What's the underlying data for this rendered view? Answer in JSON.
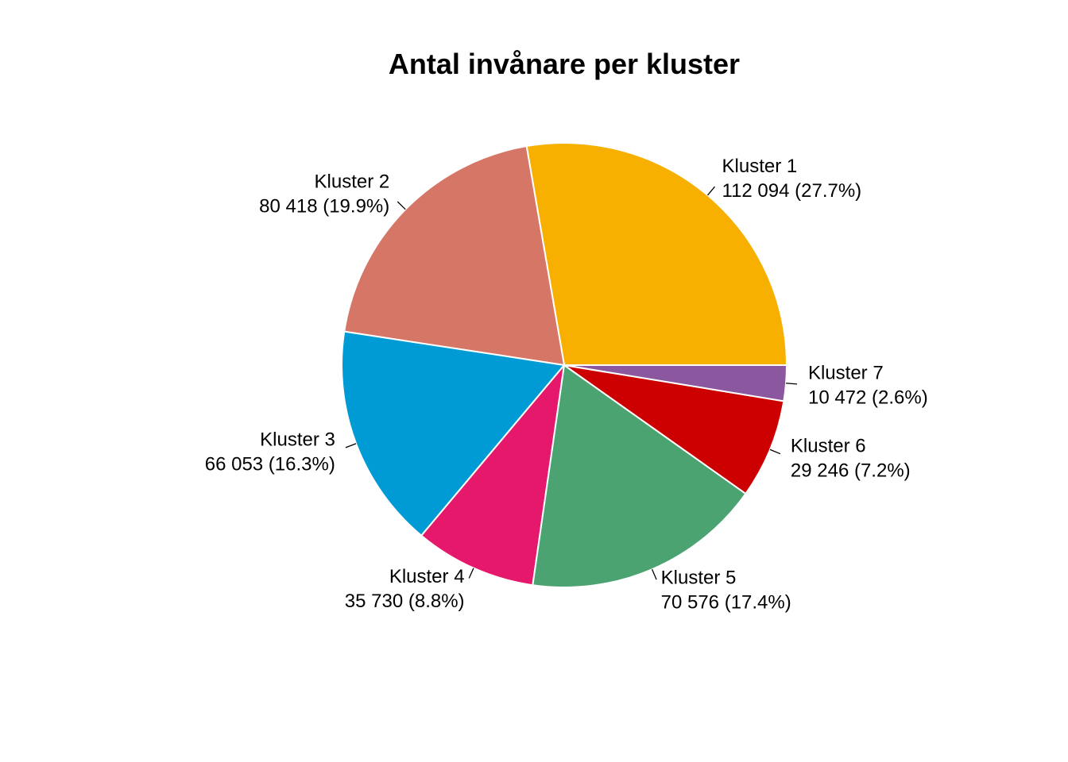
{
  "chart_data": {
    "type": "pie",
    "title": "Antal invånare per kluster",
    "slices": [
      {
        "name": "Kluster 1",
        "value": 112094,
        "value_label": "112 094",
        "percent_label": "27.7%",
        "color": "#F7B000"
      },
      {
        "name": "Kluster 2",
        "value": 80418,
        "value_label": "80 418",
        "percent_label": "19.9%",
        "color": "#D57667"
      },
      {
        "name": "Kluster 3",
        "value": 66053,
        "value_label": "66 053",
        "percent_label": "16.3%",
        "color": "#009BD5"
      },
      {
        "name": "Kluster 4",
        "value": 35730,
        "value_label": "35 730",
        "percent_label": "8.8%",
        "color": "#E6186B"
      },
      {
        "name": "Kluster 5",
        "value": 70576,
        "value_label": "70 576",
        "percent_label": "17.4%",
        "color": "#4BA371"
      },
      {
        "name": "Kluster 6",
        "value": 29246,
        "value_label": "29 246",
        "percent_label": "7.2%",
        "color": "#CC0000"
      },
      {
        "name": "Kluster 7",
        "value": 10472,
        "value_label": "10 472",
        "percent_label": "2.6%",
        "color": "#8B579E"
      }
    ],
    "direction": "counterclockwise",
    "start": "east",
    "legend": "none"
  }
}
